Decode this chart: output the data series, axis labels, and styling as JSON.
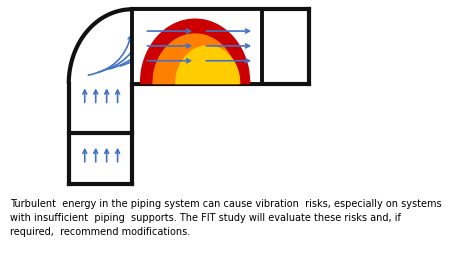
{
  "bg_color": "#ffffff",
  "pipe_color": "#111111",
  "pipe_lw": 3.0,
  "arrow_color": "#4472c4",
  "vortex_red": "#cc0000",
  "vortex_orange": "#ff8000",
  "vortex_yellow": "#ffcc00",
  "text_line1": "Turbulent  energy in the piping system can cause vibration  risks, especially on systems",
  "text_line2": "with insufficient  piping  supports. The FIT study will evaluate these risks and, if",
  "text_line3": "required,  recommend modifications.",
  "text_fontsize": 7.0,
  "pipe_inner_color": "#ffffff"
}
